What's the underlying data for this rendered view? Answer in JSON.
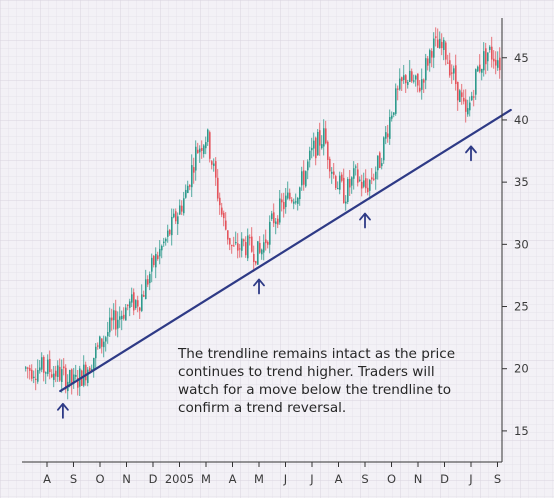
{
  "chart_data": {
    "type": "candlestick",
    "x_ticks": [
      "A",
      "S",
      "O",
      "N",
      "D",
      "2005",
      "M",
      "A",
      "M",
      "J",
      "J",
      "A",
      "S",
      "O",
      "N",
      "D",
      "J",
      "S"
    ],
    "y_ticks": [
      15,
      20,
      25,
      30,
      35,
      40,
      45
    ],
    "ylim": [
      12.5,
      49
    ],
    "grid": true,
    "colors": {
      "up": "#2e9a8c",
      "down": "#e4545c",
      "trendline": "#2e3a86",
      "arrow": "#2e3a86"
    },
    "price_path": [
      {
        "x": 0,
        "y": 20.0
      },
      {
        "x": 0.5,
        "y": 19.5
      },
      {
        "x": 1.0,
        "y": 18.8
      },
      {
        "x": 1.4,
        "y": 19.8
      },
      {
        "x": 2.0,
        "y": 22.0
      },
      {
        "x": 2.5,
        "y": 23.8
      },
      {
        "x": 3.0,
        "y": 25.0
      },
      {
        "x": 3.5,
        "y": 25.6
      },
      {
        "x": 4.0,
        "y": 28.5
      },
      {
        "x": 4.5,
        "y": 30.5
      },
      {
        "x": 4.8,
        "y": 32.0
      },
      {
        "x": 5.2,
        "y": 34.0
      },
      {
        "x": 5.6,
        "y": 37.5
      },
      {
        "x": 6.0,
        "y": 38.8
      },
      {
        "x": 6.3,
        "y": 35.5
      },
      {
        "x": 6.6,
        "y": 32.0
      },
      {
        "x": 7.0,
        "y": 29.5
      },
      {
        "x": 7.4,
        "y": 30.0
      },
      {
        "x": 8.0,
        "y": 29.2
      },
      {
        "x": 8.5,
        "y": 32.0
      },
      {
        "x": 9.0,
        "y": 33.5
      },
      {
        "x": 9.5,
        "y": 34.5
      },
      {
        "x": 10.0,
        "y": 37.5
      },
      {
        "x": 10.4,
        "y": 38.8
      },
      {
        "x": 10.8,
        "y": 35.5
      },
      {
        "x": 11.2,
        "y": 34.0
      },
      {
        "x": 11.6,
        "y": 35.5
      },
      {
        "x": 12.0,
        "y": 34.5
      },
      {
        "x": 12.5,
        "y": 36.5
      },
      {
        "x": 13.0,
        "y": 41.0
      },
      {
        "x": 13.5,
        "y": 43.5
      },
      {
        "x": 14.0,
        "y": 42.5
      },
      {
        "x": 14.5,
        "y": 46.0
      },
      {
        "x": 15.0,
        "y": 45.5
      },
      {
        "x": 15.4,
        "y": 43.0
      },
      {
        "x": 15.8,
        "y": 40.0
      },
      {
        "x": 16.2,
        "y": 44.0
      },
      {
        "x": 16.6,
        "y": 45.5
      },
      {
        "x": 17.0,
        "y": 45.0
      },
      {
        "x": 17.4,
        "y": 42.0
      }
    ],
    "trendline": [
      {
        "x": 0.5,
        "y": 18.2
      },
      {
        "x": 17.5,
        "y": 40.8
      }
    ],
    "support_points": [
      {
        "x": 0.6,
        "y": 18.3
      },
      {
        "x": 8.0,
        "y": 28.3
      },
      {
        "x": 12.0,
        "y": 33.6
      },
      {
        "x": 16.0,
        "y": 39.0
      }
    ],
    "annotation": [
      "The trendline remains intact as the price",
      "continues to trend higher. Traders will",
      "watch for a move below the trendline to",
      "confirm a trend reversal."
    ]
  }
}
